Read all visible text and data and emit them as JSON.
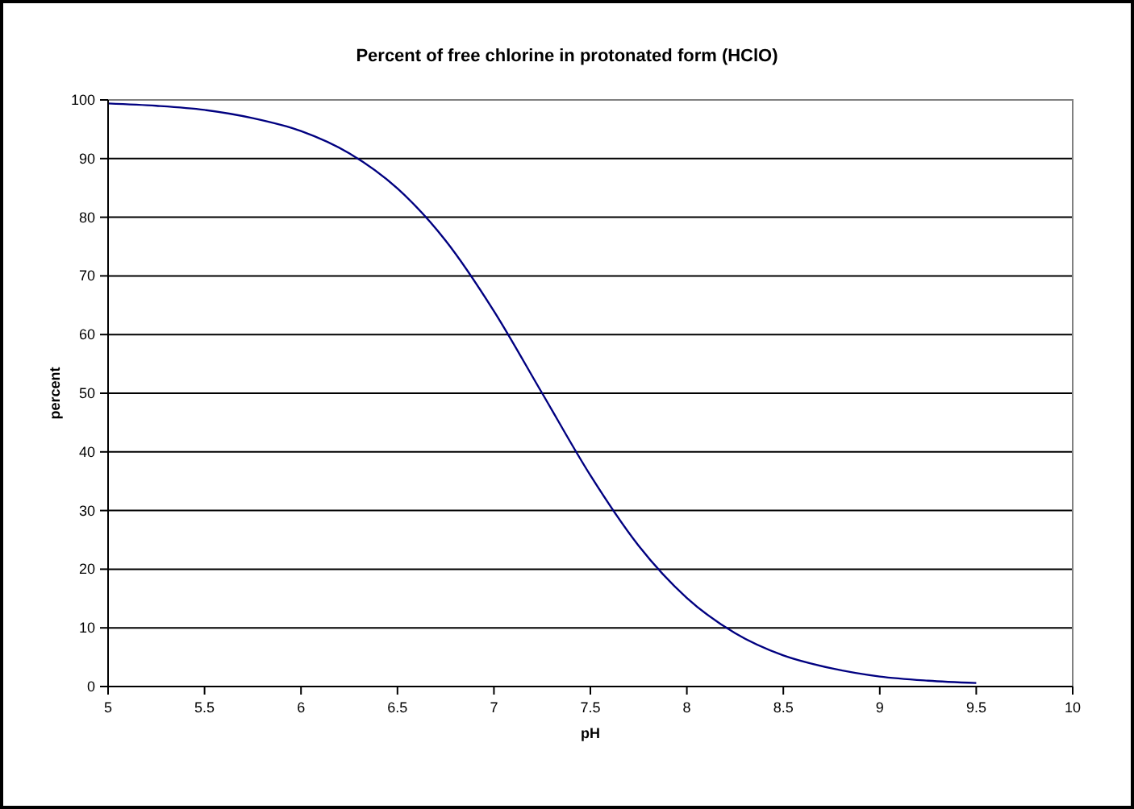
{
  "chart_data": {
    "type": "line",
    "title": "Percent of free chlorine in protonated form (HClO)",
    "xlabel": "pH",
    "ylabel": "percent",
    "x": [
      5,
      5.25,
      5.5,
      5.75,
      6,
      6.25,
      6.5,
      6.75,
      7,
      7.25,
      7.5,
      7.75,
      8,
      8.25,
      8.5,
      8.75,
      9,
      9.25,
      9.5
    ],
    "series": [
      {
        "color": "#000080",
        "values": [
          99.4,
          99.0,
          98.3,
          96.9,
          94.7,
          90.9,
          84.9,
          76.0,
          64.0,
          50,
          36.0,
          24.0,
          15.1,
          9.1,
          5.3,
          3.1,
          1.7,
          1.0,
          0.6
        ]
      }
    ],
    "xlim": [
      5,
      10
    ],
    "xticks": [
      5,
      5.5,
      6,
      6.5,
      7,
      7.5,
      8,
      8.5,
      9,
      9.5,
      10
    ],
    "ylim": [
      0,
      100
    ],
    "yticks": [
      0,
      10,
      20,
      30,
      40,
      50,
      60,
      70,
      80,
      90,
      100
    ],
    "grid": "y",
    "marker": "none",
    "line_style": "solid"
  }
}
